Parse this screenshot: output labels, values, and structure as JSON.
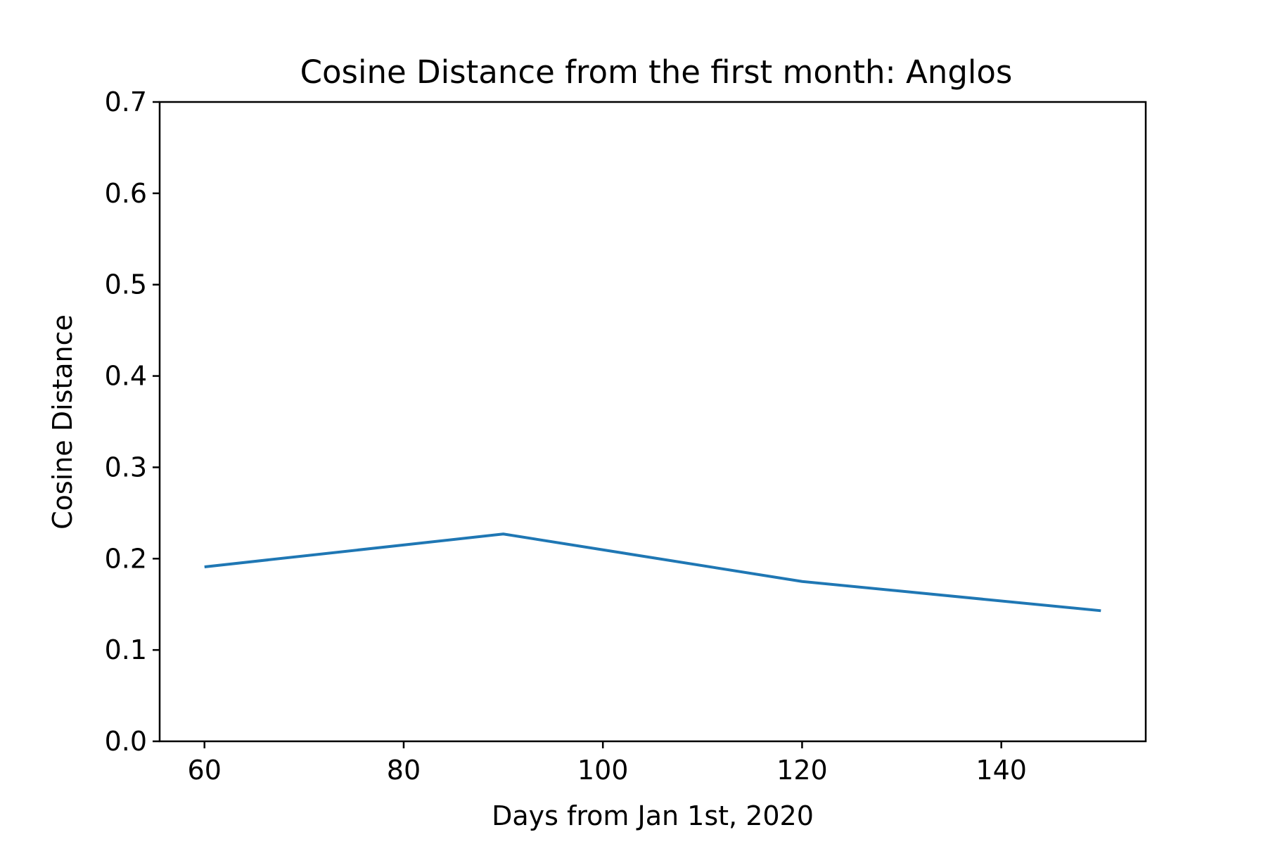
{
  "chart_data": {
    "type": "line",
    "title": "Cosine Distance from the first month: Anglos",
    "xlabel": "Days from Jan 1st, 2020",
    "ylabel": "Cosine Distance",
    "xlim": [
      55.5,
      154.5
    ],
    "ylim": [
      0.0,
      0.7
    ],
    "x_ticks": [
      60,
      80,
      100,
      120,
      140
    ],
    "x_tick_labels": [
      "60",
      "80",
      "100",
      "120",
      "140"
    ],
    "y_ticks": [
      0.0,
      0.1,
      0.2,
      0.3,
      0.4,
      0.5,
      0.6,
      0.7
    ],
    "y_tick_labels": [
      "0.0",
      "0.1",
      "0.2",
      "0.3",
      "0.4",
      "0.5",
      "0.6",
      "0.7"
    ],
    "grid": false,
    "series": [
      {
        "color": "#1f77b4",
        "x": [
          60,
          90,
          120,
          150
        ],
        "y": [
          0.191,
          0.227,
          0.175,
          0.143
        ]
      }
    ]
  }
}
